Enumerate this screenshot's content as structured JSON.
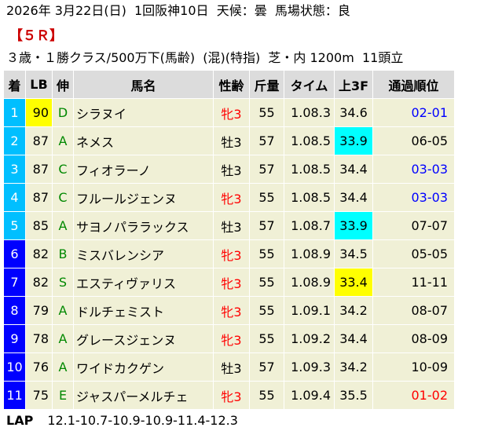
{
  "header": {
    "line1": "2026年 3月22日(日)  1回阪神10日  天候：曇  馬場状態：良",
    "race": "【５Ｒ】",
    "line3": "３歳・１勝クラス/500万下(馬齢)  (混)(特指)  芝・内 1200m  11頭立"
  },
  "columns": [
    "着",
    "LB",
    "伸",
    "馬名",
    "性齢",
    "斤量",
    "タイム",
    "上3F",
    "通過順位"
  ],
  "colors": {
    "frame": {
      "1": "#ffffff",
      "2": "#000000",
      "3": "#ff0000",
      "4": "#0000ff",
      "5": "#ffff00",
      "6": "#00a000",
      "7": "#ff8c00",
      "8": "#ff8cc8"
    },
    "rank_cell": "#00bfff",
    "header_bg": "#dcdcdc",
    "row_bg": "#f0f0d6",
    "highlight_yellow": "#ffff00",
    "highlight_cyan": "#00ffff",
    "pos_red": "#ff0000",
    "pos_blue": "#0000ff"
  },
  "rows": [
    {
      "rank": "1",
      "lb": "90",
      "lb_hl": "yellow",
      "stretch": "D",
      "name": "シラヌイ",
      "sex_age": "牝3",
      "sex_red": true,
      "weight": "55",
      "time": "1.08.3",
      "last3f": "34.6",
      "l3f_hl": "",
      "passing": "02-01",
      "pass_color": "blue"
    },
    {
      "rank": "2",
      "lb": "87",
      "lb_hl": "",
      "stretch": "A",
      "name": "ネメス",
      "sex_age": "牡3",
      "sex_red": false,
      "weight": "57",
      "time": "1.08.5",
      "last3f": "33.9",
      "l3f_hl": "cyan",
      "passing": "06-05",
      "pass_color": ""
    },
    {
      "rank": "3",
      "lb": "87",
      "lb_hl": "",
      "stretch": "C",
      "name": "フィオラーノ",
      "sex_age": "牡3",
      "sex_red": false,
      "weight": "57",
      "time": "1.08.5",
      "last3f": "34.4",
      "l3f_hl": "",
      "passing": "03-03",
      "pass_color": "blue"
    },
    {
      "rank": "4",
      "lb": "87",
      "lb_hl": "",
      "stretch": "C",
      "name": "フルールジェンヌ",
      "sex_age": "牝3",
      "sex_red": true,
      "weight": "55",
      "time": "1.08.5",
      "last3f": "34.4",
      "l3f_hl": "",
      "passing": "03-03",
      "pass_color": "blue"
    },
    {
      "rank": "5",
      "lb": "85",
      "lb_hl": "",
      "stretch": "A",
      "name": "サヨノパララックス",
      "sex_age": "牡3",
      "sex_red": false,
      "weight": "57",
      "time": "1.08.7",
      "last3f": "33.9",
      "l3f_hl": "cyan",
      "passing": "07-07",
      "pass_color": ""
    },
    {
      "rank": "6",
      "lb": "82",
      "lb_hl": "",
      "stretch": "B",
      "name": "ミスバレンシア",
      "sex_age": "牝3",
      "sex_red": true,
      "weight": "55",
      "time": "1.08.9",
      "last3f": "34.5",
      "l3f_hl": "",
      "passing": "05-05",
      "pass_color": ""
    },
    {
      "rank": "7",
      "lb": "82",
      "lb_hl": "",
      "stretch": "S",
      "name": "エスティヴァリス",
      "sex_age": "牝3",
      "sex_red": true,
      "weight": "55",
      "time": "1.08.9",
      "last3f": "33.4",
      "l3f_hl": "yellow",
      "passing": "11-11",
      "pass_color": ""
    },
    {
      "rank": "8",
      "lb": "79",
      "lb_hl": "",
      "stretch": "A",
      "name": "ドルチェミスト",
      "sex_age": "牝3",
      "sex_red": true,
      "weight": "55",
      "time": "1.09.1",
      "last3f": "34.2",
      "l3f_hl": "",
      "passing": "08-07",
      "pass_color": ""
    },
    {
      "rank": "9",
      "lb": "78",
      "lb_hl": "",
      "stretch": "A",
      "name": "グレースジェンヌ",
      "sex_age": "牝3",
      "sex_red": true,
      "weight": "55",
      "time": "1.09.2",
      "last3f": "34.4",
      "l3f_hl": "",
      "passing": "08-09",
      "pass_color": ""
    },
    {
      "rank": "10",
      "lb": "76",
      "lb_hl": "",
      "stretch": "A",
      "name": "ワイドカクゲン",
      "sex_age": "牡3",
      "sex_red": false,
      "weight": "57",
      "time": "1.09.3",
      "last3f": "34.2",
      "l3f_hl": "",
      "passing": "10-09",
      "pass_color": ""
    },
    {
      "rank": "11",
      "lb": "75",
      "lb_hl": "",
      "stretch": "E",
      "name": "ジャスパーメルチェ",
      "sex_age": "牝3",
      "sex_red": true,
      "weight": "55",
      "time": "1.09.4",
      "last3f": "35.5",
      "l3f_hl": "",
      "passing": "01-02",
      "pass_color": "red"
    }
  ],
  "lap": {
    "label": "LAP",
    "value": "12.1-10.7-10.9-10.9-11.4-12.3"
  }
}
